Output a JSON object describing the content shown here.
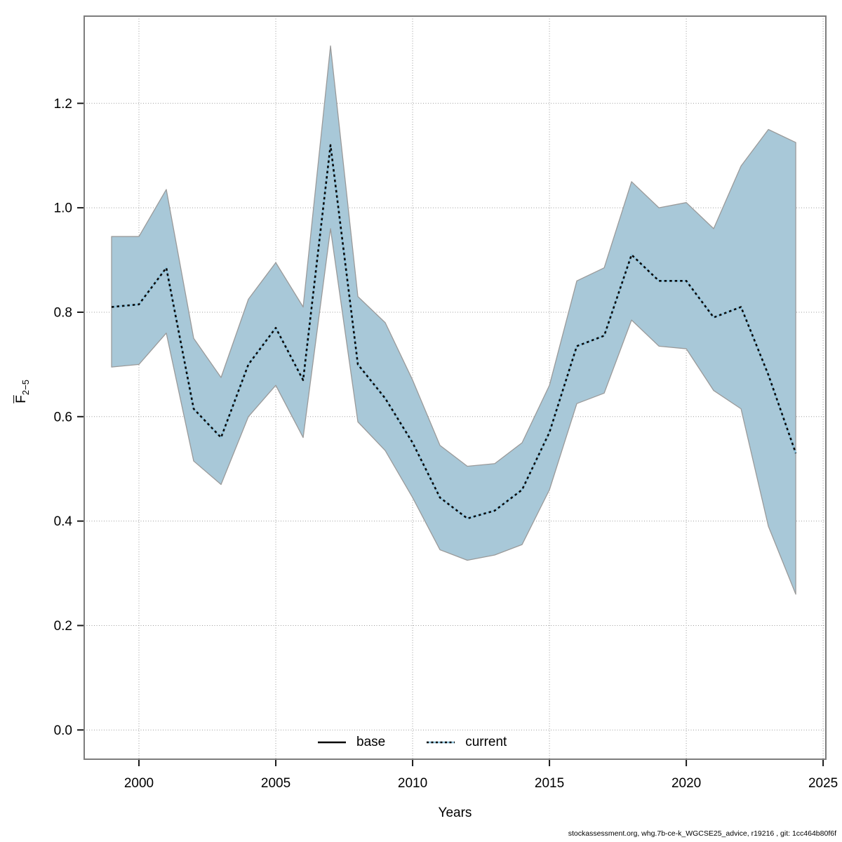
{
  "axes": {
    "x_label": "Years",
    "y_label_main": "F",
    "y_label_sub": "2−5"
  },
  "footer_text": "stockassessment.org, whg.7b-ce-k_WGCSE25_advice, r19216 , git: 1cc464b80f6f",
  "chart_data": {
    "type": "line",
    "title": "",
    "xlabel": "Years",
    "ylabel": "Fbar(2-5)",
    "xlim": [
      1998.0,
      2025.1
    ],
    "ylim": [
      -0.056,
      1.367
    ],
    "grid": "dotted",
    "legend_position": "bottom",
    "x": [
      1999,
      2000,
      2001,
      2002,
      2003,
      2004,
      2005,
      2006,
      2007,
      2008,
      2009,
      2010,
      2011,
      2012,
      2013,
      2014,
      2015,
      2016,
      2017,
      2018,
      2019,
      2020,
      2021,
      2022,
      2023,
      2024
    ],
    "series": [
      {
        "name": "current",
        "values": [
          0.81,
          0.815,
          0.885,
          0.615,
          0.56,
          0.7,
          0.77,
          0.67,
          1.12,
          0.7,
          0.635,
          0.55,
          0.445,
          0.405,
          0.42,
          0.46,
          0.57,
          0.735,
          0.755,
          0.91,
          0.86,
          0.86,
          0.79,
          0.81,
          0.68,
          0.53
        ]
      }
    ],
    "band": {
      "name": "current-confidence-interval",
      "lower": [
        0.695,
        0.7,
        0.76,
        0.515,
        0.47,
        0.6,
        0.66,
        0.56,
        0.96,
        0.59,
        0.535,
        0.445,
        0.345,
        0.325,
        0.335,
        0.355,
        0.46,
        0.625,
        0.645,
        0.785,
        0.735,
        0.73,
        0.65,
        0.615,
        0.39,
        0.26
      ],
      "upper": [
        0.945,
        0.945,
        1.035,
        0.75,
        0.675,
        0.825,
        0.895,
        0.81,
        1.31,
        0.83,
        0.78,
        0.67,
        0.545,
        0.505,
        0.51,
        0.55,
        0.66,
        0.86,
        0.885,
        1.05,
        1.0,
        1.01,
        0.96,
        1.08,
        1.15,
        1.125
      ]
    },
    "x_ticks": [
      2000,
      2005,
      2010,
      2015,
      2020,
      2025
    ],
    "y_ticks": [
      0,
      0.2,
      0.4,
      0.6,
      0.8,
      1.0,
      1.2
    ],
    "y_tick_labels": [
      "0.0",
      "0.2",
      "0.4",
      "0.6",
      "0.8",
      "1.0",
      "1.2"
    ],
    "legend": [
      {
        "label": "base",
        "color": "#000000",
        "line_style": "solid"
      },
      {
        "label": "current",
        "color": "#8fc3dc",
        "line_style": "dotted"
      }
    ],
    "colors": {
      "band_fill": "#a8c8d8",
      "band_edge": "#9a9a9a",
      "line_under": "#8fc3dc",
      "line_dash": "#0a0a0a",
      "axis_box": "#7d7d7d",
      "tick": "#1a1a1a",
      "grid": "#9c9c9c"
    }
  }
}
